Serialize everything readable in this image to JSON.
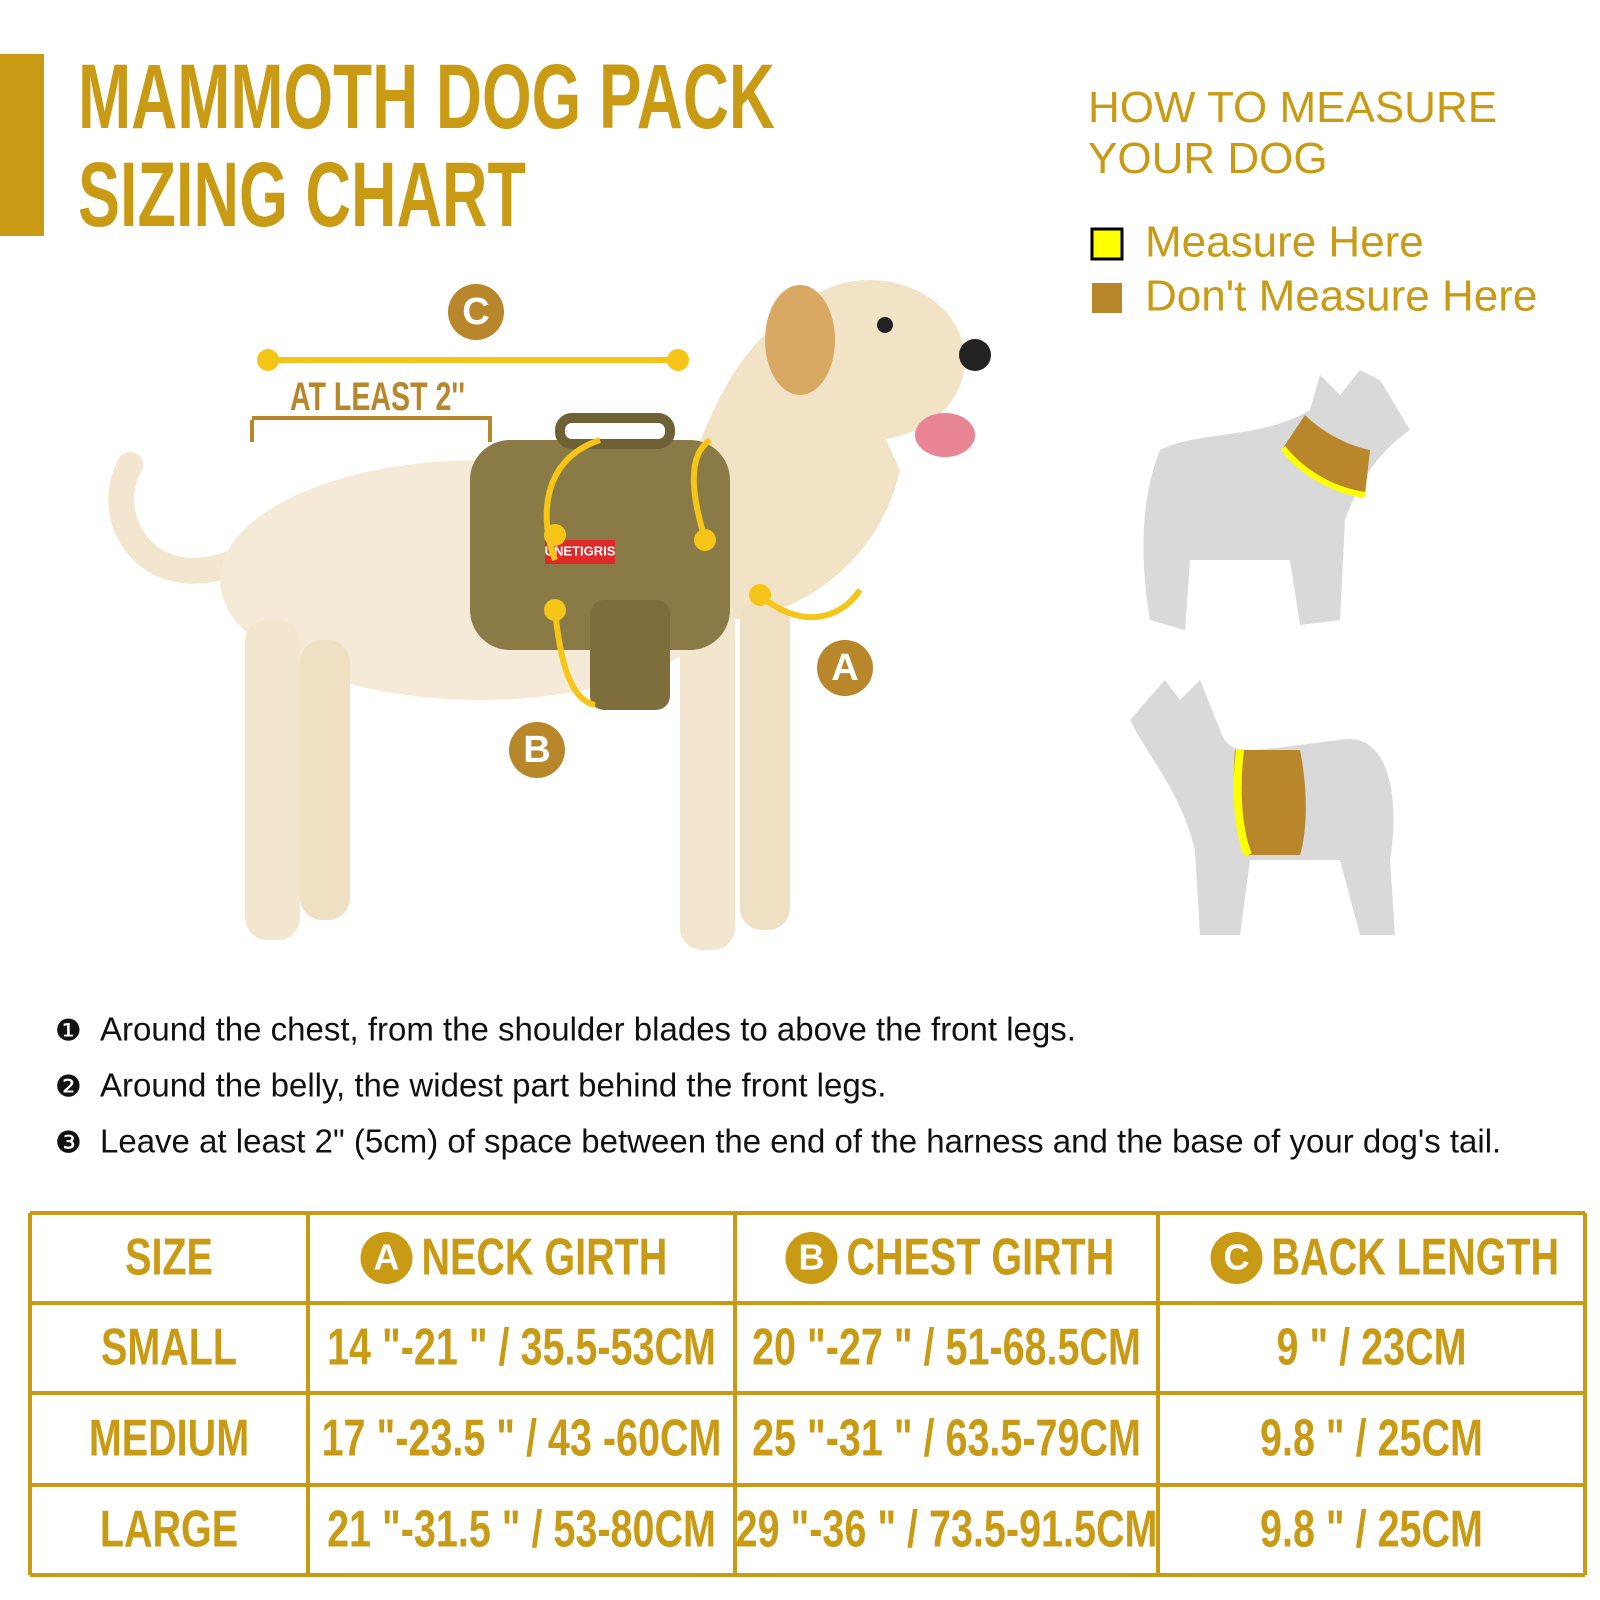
{
  "header": {
    "title": [
      "MAMMOTH DOG PACK",
      "SIZING CHART"
    ]
  },
  "measure_guide": {
    "title": [
      "HOW  TO  MEASURE",
      "YOUR  DOG"
    ],
    "legend": [
      {
        "label": "Measure Here",
        "color": "#ffff00"
      },
      {
        "label": "Don't Measure Here",
        "color": "#b8862b"
      }
    ]
  },
  "photo": {
    "label_c": "C",
    "at_least": "AT LEAST 2''",
    "label_a": "A",
    "label_b": "B",
    "brand": "UNETIGRIS"
  },
  "instructions": [
    {
      "marker": "❶",
      "text": "Around the chest, from the shoulder blades to above the front legs."
    },
    {
      "marker": "❷",
      "text": "Around the belly, the widest part behind the front legs."
    },
    {
      "marker": "❸",
      "text": "Leave at least 2\" (5cm) of space between the end of the harness and  the base of your dog's tail."
    }
  ],
  "table": {
    "header": [
      {
        "text": "SIZE"
      },
      {
        "badge": "A",
        "text": "NECK GIRTH"
      },
      {
        "badge": "B",
        "text": "CHEST GIRTH"
      },
      {
        "badge": "C",
        "text": "BACK LENGTH"
      }
    ],
    "rows": [
      [
        "SMALL",
        "14 \"-21 \"  /  35.5-53CM",
        "20 \"-27 \" / 51-68.5CM",
        "9 \" / 23CM"
      ],
      [
        "MEDIUM",
        "17 \"-23.5 \" / 43 -60CM",
        "25 \"-31 \" / 63.5-79CM",
        "9.8 \" / 25CM"
      ],
      [
        "LARGE",
        "21 \"-31.5 \" / 53-80CM",
        "29 \"-36 \" / 73.5-91.5CM",
        "9.8 \" / 25CM"
      ]
    ]
  }
}
